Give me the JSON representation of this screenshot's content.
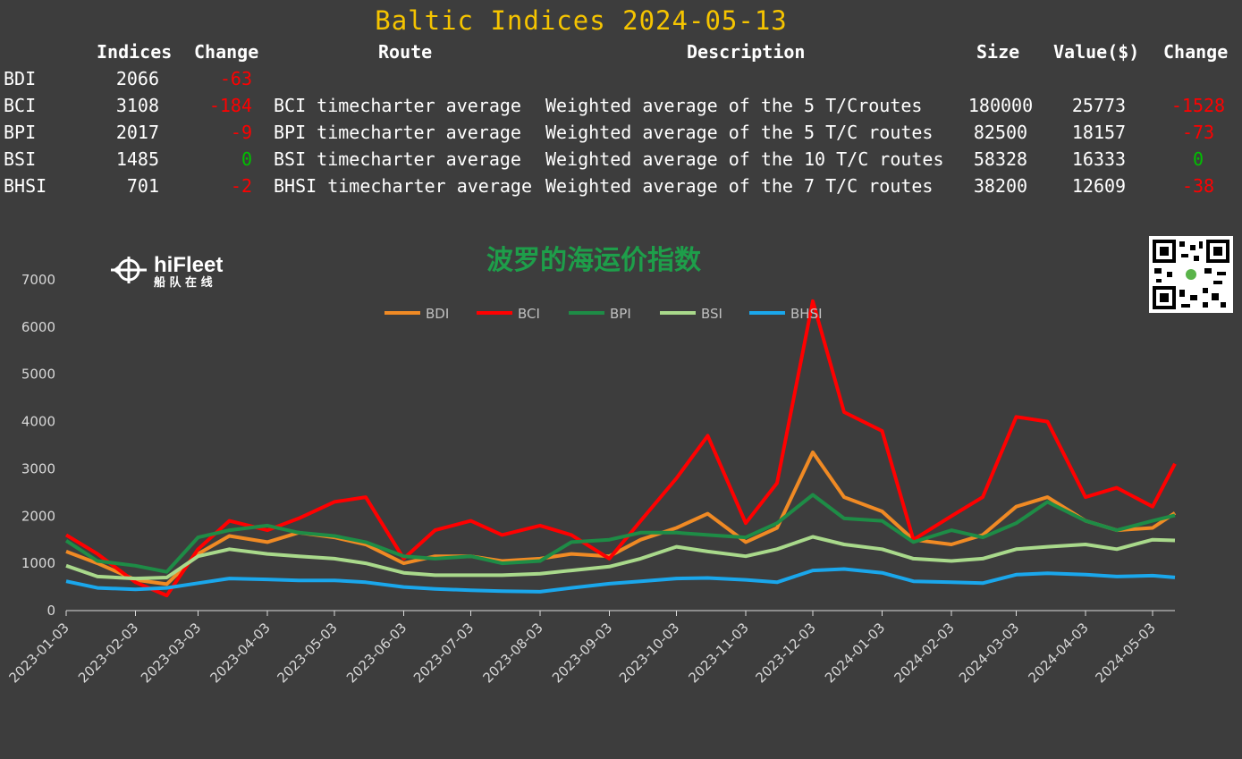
{
  "title": "Baltic Indices 2024-05-13",
  "table": {
    "headers": {
      "indices": "Indices",
      "change": "Change",
      "route": "Route",
      "description": "Description",
      "size": "Size",
      "value": "Value($)",
      "change2": "Change"
    },
    "rows": [
      {
        "name": "BDI",
        "index": "2066",
        "change": "-63",
        "route": "",
        "description": "",
        "size": "",
        "value": "",
        "change2": ""
      },
      {
        "name": "BCI",
        "index": "3108",
        "change": "-184",
        "route": "BCI timecharter average",
        "description": "Weighted average of the 5 T/Croutes",
        "size": "180000",
        "value": "25773",
        "change2": "-1528"
      },
      {
        "name": "BPI",
        "index": "2017",
        "change": "-9",
        "route": "BPI timecharter average",
        "description": "Weighted average of the 5 T/C routes",
        "size": "82500",
        "value": "18157",
        "change2": "-73"
      },
      {
        "name": "BSI",
        "index": "1485",
        "change": "0",
        "route": "BSI timecharter average",
        "description": "Weighted average of the 10 T/C routes",
        "size": "58328",
        "value": "16333",
        "change2": "0"
      },
      {
        "name": "BHSI",
        "index": "701",
        "change": "-2",
        "route": "BHSI timecharter average",
        "description": "Weighted average of the 7 T/C routes",
        "size": "38200",
        "value": "12609",
        "change2": "-38"
      }
    ]
  },
  "logo": {
    "name": "hiFleet",
    "sub": "船 队 在 线"
  },
  "chart_data": {
    "type": "line",
    "title": "波罗的海运价指数",
    "ylim": [
      0,
      7000
    ],
    "yticks": [
      0,
      1000,
      2000,
      3000,
      4000,
      5000,
      6000,
      7000
    ],
    "xticks": [
      "2023-01-03",
      "2023-02-03",
      "2023-03-03",
      "2023-04-03",
      "2023-05-03",
      "2023-06-03",
      "2023-07-03",
      "2023-08-03",
      "2023-09-03",
      "2023-10-03",
      "2023-11-03",
      "2023-12-03",
      "2024-01-03",
      "2024-02-03",
      "2024-03-03",
      "2024-04-03",
      "2024-05-03"
    ],
    "x": [
      "2023-01-03",
      "2023-01-17",
      "2023-02-03",
      "2023-02-17",
      "2023-03-03",
      "2023-03-17",
      "2023-04-03",
      "2023-04-17",
      "2023-05-03",
      "2023-05-17",
      "2023-06-03",
      "2023-06-17",
      "2023-07-03",
      "2023-07-17",
      "2023-08-03",
      "2023-08-17",
      "2023-09-03",
      "2023-09-17",
      "2023-10-03",
      "2023-10-17",
      "2023-11-03",
      "2023-11-17",
      "2023-12-03",
      "2023-12-17",
      "2024-01-03",
      "2024-01-17",
      "2024-02-03",
      "2024-02-17",
      "2024-03-03",
      "2024-03-17",
      "2024-04-03",
      "2024-04-17",
      "2024-05-03",
      "2024-05-13"
    ],
    "legend_position": "top",
    "series": [
      {
        "name": "BDI",
        "color": "#f08a24",
        "values": [
          1250,
          1000,
          650,
          560,
          1200,
          1580,
          1450,
          1650,
          1550,
          1400,
          1000,
          1150,
          1150,
          1050,
          1100,
          1200,
          1150,
          1500,
          1750,
          2050,
          1450,
          1750,
          3350,
          2400,
          2100,
          1500,
          1400,
          1600,
          2200,
          2400,
          1900,
          1700,
          1750,
          2066
        ]
      },
      {
        "name": "BCI",
        "color": "#ff0000",
        "values": [
          1600,
          1200,
          600,
          320,
          1300,
          1900,
          1700,
          1950,
          2300,
          2400,
          1100,
          1700,
          1900,
          1600,
          1800,
          1600,
          1100,
          1900,
          2800,
          3700,
          1850,
          2700,
          6550,
          4200,
          3800,
          1500,
          2000,
          2400,
          4100,
          4000,
          2400,
          2600,
          2200,
          3108
        ]
      },
      {
        "name": "BPI",
        "color": "#1e8c46",
        "values": [
          1480,
          1050,
          950,
          820,
          1550,
          1700,
          1800,
          1650,
          1580,
          1450,
          1150,
          1100,
          1150,
          1000,
          1050,
          1450,
          1500,
          1650,
          1650,
          1600,
          1550,
          1850,
          2450,
          1950,
          1900,
          1450,
          1700,
          1550,
          1850,
          2300,
          1900,
          1700,
          1900,
          2017
        ]
      },
      {
        "name": "BSI",
        "color": "#a9d98b",
        "values": [
          950,
          720,
          680,
          700,
          1150,
          1300,
          1200,
          1150,
          1100,
          1000,
          800,
          750,
          750,
          750,
          780,
          850,
          930,
          1100,
          1350,
          1250,
          1150,
          1300,
          1560,
          1400,
          1300,
          1100,
          1050,
          1100,
          1300,
          1350,
          1400,
          1300,
          1500,
          1485
        ]
      },
      {
        "name": "BHSI",
        "color": "#1aa7ec",
        "values": [
          620,
          480,
          450,
          480,
          580,
          680,
          660,
          640,
          640,
          600,
          500,
          460,
          430,
          410,
          400,
          480,
          570,
          620,
          680,
          690,
          650,
          600,
          850,
          880,
          800,
          620,
          600,
          580,
          760,
          790,
          760,
          720,
          740,
          701
        ]
      }
    ]
  }
}
